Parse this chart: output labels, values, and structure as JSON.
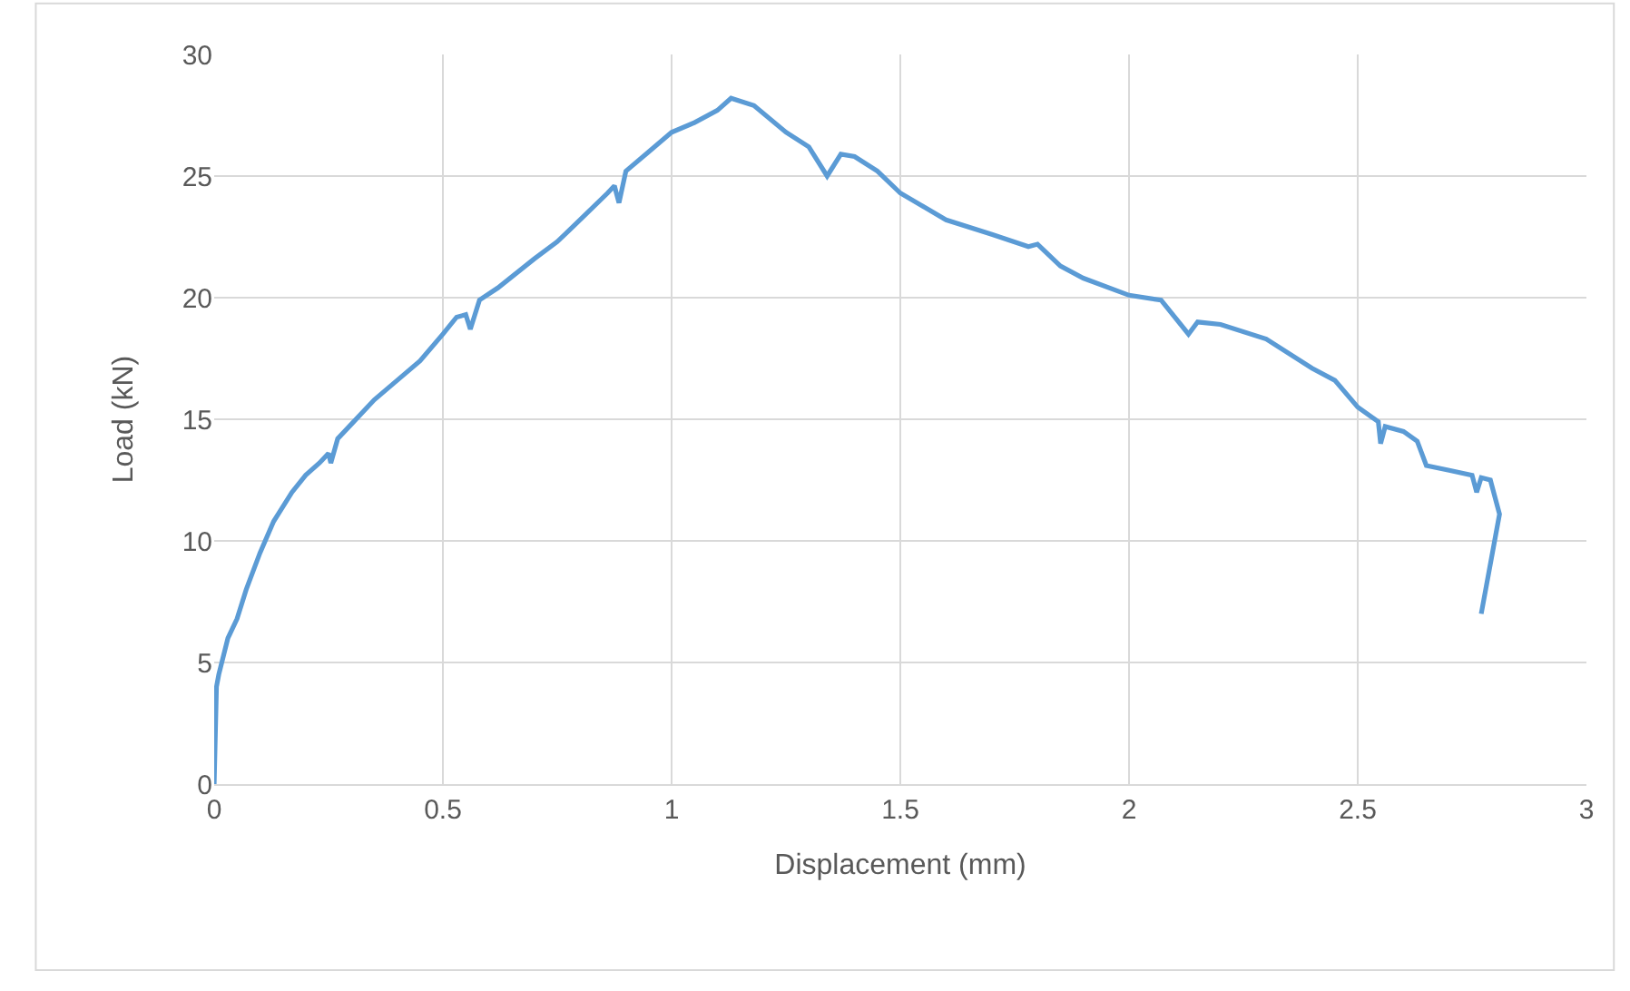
{
  "chart_data": {
    "type": "line",
    "xlabel": "Displacement (mm)",
    "ylabel": "Load (kN)",
    "xlim": [
      0,
      3
    ],
    "xticks": [
      0,
      0.5,
      1,
      1.5,
      2,
      2.5,
      3
    ],
    "ylim": [
      0,
      30
    ],
    "yticks": [
      0,
      5,
      10,
      15,
      20,
      25,
      30
    ],
    "grid": true,
    "legend": false,
    "marker": "none",
    "line_style": "solid",
    "series": [
      {
        "color": "#5b9bd5",
        "x": [
          0,
          0.005,
          0.01,
          0.03,
          0.05,
          0.07,
          0.1,
          0.13,
          0.17,
          0.2,
          0.23,
          0.25,
          0.255,
          0.27,
          0.3,
          0.35,
          0.4,
          0.45,
          0.5,
          0.53,
          0.55,
          0.56,
          0.58,
          0.62,
          0.7,
          0.75,
          0.8,
          0.86,
          0.875,
          0.885,
          0.9,
          0.95,
          1.0,
          1.05,
          1.1,
          1.13,
          1.18,
          1.25,
          1.3,
          1.34,
          1.37,
          1.4,
          1.45,
          1.5,
          1.6,
          1.7,
          1.78,
          1.8,
          1.85,
          1.9,
          2.0,
          2.07,
          2.13,
          2.15,
          2.2,
          2.3,
          2.4,
          2.45,
          2.5,
          2.53,
          2.545,
          2.55,
          2.56,
          2.6,
          2.63,
          2.65,
          2.7,
          2.75,
          2.76,
          2.77,
          2.79,
          2.81,
          2.77
        ],
        "values": [
          0,
          4,
          4.5,
          6,
          6.8,
          8,
          9.5,
          10.8,
          12,
          12.7,
          13.2,
          13.6,
          13.2,
          14.2,
          14.8,
          15.8,
          16.6,
          17.4,
          18.5,
          19.2,
          19.3,
          18.7,
          19.9,
          20.4,
          21.6,
          22.3,
          23.2,
          24.3,
          24.6,
          23.9,
          25.2,
          26,
          26.8,
          27.2,
          27.7,
          28.2,
          27.9,
          26.8,
          26.2,
          25,
          25.9,
          25.8,
          25.2,
          24.3,
          23.2,
          22.6,
          22.1,
          22.2,
          21.3,
          20.8,
          20.1,
          19.9,
          18.5,
          19,
          18.9,
          18.3,
          17.1,
          16.6,
          15.5,
          15.1,
          14.9,
          14,
          14.7,
          14.5,
          14.1,
          13.1,
          12.9,
          12.7,
          12,
          12.6,
          12.5,
          11.1,
          7
        ]
      }
    ]
  }
}
